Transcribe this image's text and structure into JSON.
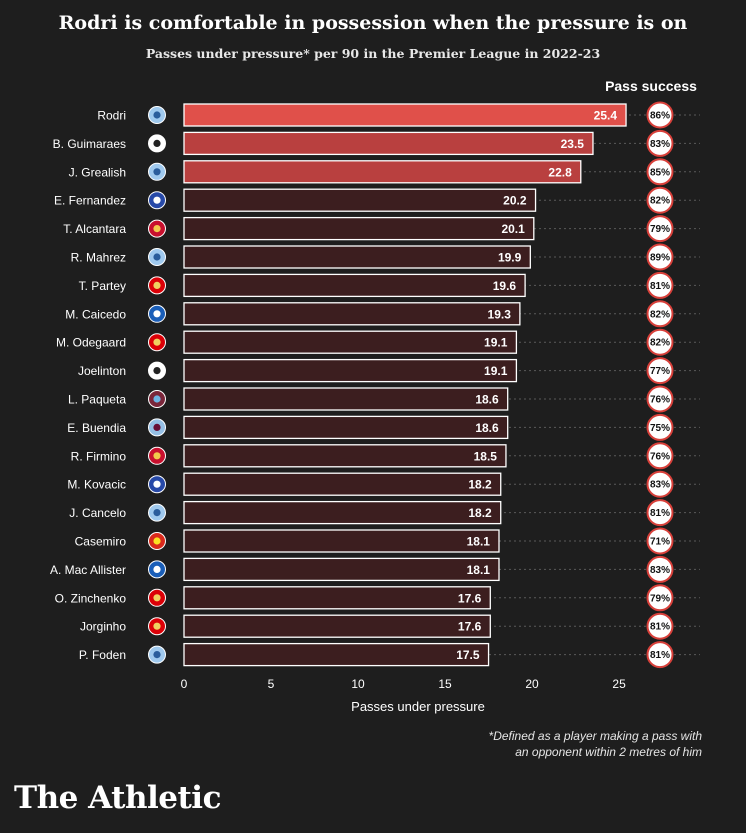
{
  "title": "Rodri is comfortable in possession when the pressure is on",
  "subtitle": "Passes under pressure* per 90 in the Premier League in 2022-23",
  "pass_success_header": "Pass success",
  "footnote_line1": "*Defined as a player making a pass with",
  "footnote_line2": "an opponent within 2 metres of him",
  "brand": "The Athletic",
  "colors": {
    "background": "#1e1e1e",
    "highlight_bar": "#e0504a",
    "top_bars": "#b9403f",
    "other_bars": "#3c1e1f",
    "bar_border": "#ffffff",
    "badge_fill": "#ffffff",
    "badge_border": "#d8403a"
  },
  "chart_data": {
    "type": "bar",
    "orientation": "horizontal",
    "xlabel": "Passes under pressure",
    "xlim": [
      0,
      25.8
    ],
    "xticks": [
      0,
      5,
      10,
      15,
      20,
      25
    ],
    "grid": "horizontal dotted row lines",
    "categories": [
      "Rodri",
      "B. Guimaraes",
      "J. Grealish",
      "E. Fernandez",
      "T. Alcantara",
      "R. Mahrez",
      "T. Partey",
      "M. Caicedo",
      "M. Odegaard",
      "Joelinton",
      "L. Paqueta",
      "E. Buendia",
      "R. Firmino",
      "M. Kovacic",
      "J. Cancelo",
      "Casemiro",
      "A. Mac Allister",
      "O. Zinchenko",
      "Jorginho",
      "P. Foden"
    ],
    "clubs": [
      "man-city",
      "newcastle",
      "man-city",
      "chelsea",
      "liverpool",
      "man-city",
      "arsenal",
      "brighton",
      "arsenal",
      "newcastle",
      "west-ham",
      "aston-villa",
      "liverpool",
      "chelsea",
      "man-city",
      "man-utd",
      "brighton",
      "arsenal",
      "arsenal",
      "man-city"
    ],
    "values": [
      25.4,
      23.5,
      22.8,
      20.2,
      20.1,
      19.9,
      19.6,
      19.3,
      19.1,
      19.1,
      18.6,
      18.6,
      18.5,
      18.2,
      18.2,
      18.1,
      18.1,
      17.6,
      17.6,
      17.5
    ],
    "value_labels": [
      "25.4",
      "23.5",
      "22.8",
      "20.2",
      "20.1",
      "19.9",
      "19.6",
      "19.3",
      "19.1",
      "19.1",
      "18.6",
      "18.6",
      "18.5",
      "18.2",
      "18.2",
      "18.1",
      "18.1",
      "17.6",
      "17.6",
      "17.5"
    ],
    "pass_success": [
      "86%",
      "83%",
      "85%",
      "82%",
      "79%",
      "89%",
      "81%",
      "82%",
      "82%",
      "77%",
      "76%",
      "75%",
      "76%",
      "83%",
      "81%",
      "71%",
      "83%",
      "79%",
      "81%",
      "81%"
    ]
  }
}
